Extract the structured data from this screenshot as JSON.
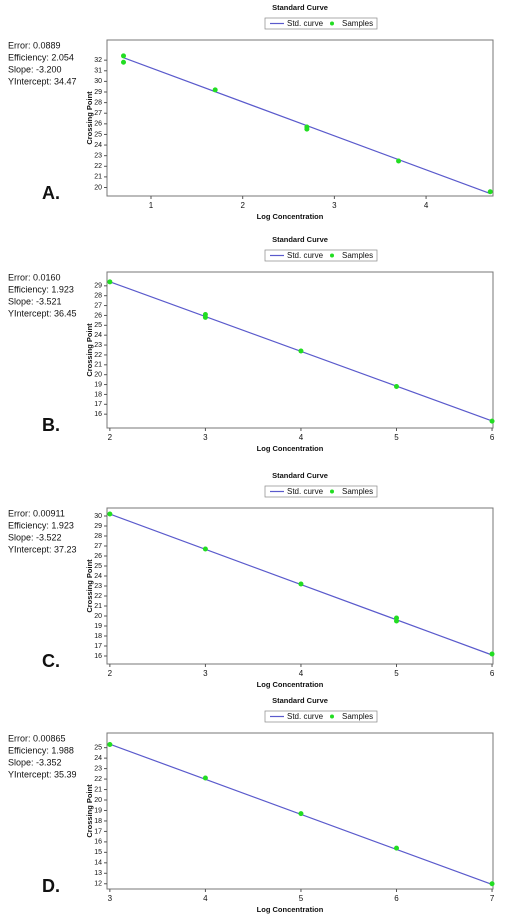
{
  "chart_data": [
    {
      "type": "line",
      "panel_label": "A.",
      "title": "Standard Curve",
      "x_label": "Log Concentration",
      "y_label": "Crossing Point",
      "stats": [
        "Error: 0.0889",
        "Efficiency: 2.054",
        "Slope: -3.200",
        "YIntercept: 34.47"
      ],
      "xlim": [
        0.52,
        4.73
      ],
      "xticks": [
        1,
        2,
        3,
        4
      ],
      "ylim": [
        19.2,
        33.9
      ],
      "yticks": [
        20,
        21,
        22,
        23,
        24,
        25,
        26,
        27,
        28,
        29,
        30,
        31,
        32
      ],
      "series": [
        {
          "name": "Std. curve",
          "mode": "line",
          "color": "#5a5acc",
          "x": [
            0.7,
            4.7
          ],
          "values": [
            32.23,
            19.43
          ]
        },
        {
          "name": "Samples",
          "mode": "markers",
          "color": "#22dd22",
          "x": [
            0.7,
            0.7,
            1.7,
            2.7,
            2.7,
            3.7,
            4.7
          ],
          "values": [
            32.4,
            31.8,
            29.2,
            25.7,
            25.5,
            22.5,
            19.6
          ]
        }
      ]
    },
    {
      "type": "line",
      "panel_label": "B.",
      "title": "Standard Curve",
      "x_label": "Log Concentration",
      "y_label": "Crossing Point",
      "stats": [
        "Error: 0.0160",
        "Efficiency: 1.923",
        "Slope: -3.521",
        "YIntercept: 36.45"
      ],
      "xlim": [
        1.97,
        6.01
      ],
      "xticks": [
        2,
        3,
        4,
        5,
        6
      ],
      "ylim": [
        14.6,
        30.4
      ],
      "yticks": [
        16,
        17,
        18,
        19,
        20,
        21,
        22,
        23,
        24,
        25,
        26,
        27,
        28,
        29
      ],
      "series": [
        {
          "name": "Std. curve",
          "mode": "line",
          "color": "#5a5acc",
          "x": [
            2,
            6
          ],
          "values": [
            29.41,
            15.32
          ]
        },
        {
          "name": "Samples",
          "mode": "markers",
          "color": "#22dd22",
          "x": [
            2,
            3,
            3,
            4,
            5,
            6
          ],
          "values": [
            29.4,
            26.1,
            25.8,
            22.4,
            18.8,
            15.3
          ]
        }
      ]
    },
    {
      "type": "line",
      "panel_label": "C.",
      "title": "Standard Curve",
      "x_label": "Log Concentration",
      "y_label": "Crossing Point",
      "stats": [
        "Error: 0.00911",
        "Efficiency: 1.923",
        "Slope: -3.522",
        "YIntercept: 37.23"
      ],
      "xlim": [
        1.97,
        6.01
      ],
      "xticks": [
        2,
        3,
        4,
        5,
        6
      ],
      "ylim": [
        15.2,
        30.8
      ],
      "yticks": [
        16,
        17,
        18,
        19,
        20,
        21,
        22,
        23,
        24,
        25,
        26,
        27,
        28,
        29,
        30
      ],
      "series": [
        {
          "name": "Std. curve",
          "mode": "line",
          "color": "#5a5acc",
          "x": [
            2,
            6
          ],
          "values": [
            30.19,
            16.1
          ]
        },
        {
          "name": "Samples",
          "mode": "markers",
          "color": "#22dd22",
          "x": [
            2,
            3,
            4,
            5,
            5,
            6
          ],
          "values": [
            30.2,
            26.7,
            23.2,
            19.8,
            19.5,
            16.2
          ]
        }
      ]
    },
    {
      "type": "line",
      "panel_label": "D.",
      "title": "Standard Curve",
      "x_label": "Log Concentration",
      "y_label": "Crossing Point",
      "stats": [
        "Error: 0.00865",
        "Efficiency: 1.988",
        "Slope: -3.352",
        "YIntercept: 35.39"
      ],
      "xlim": [
        2.97,
        7.01
      ],
      "xticks": [
        3,
        4,
        5,
        6,
        7
      ],
      "ylim": [
        11.5,
        26.4
      ],
      "yticks": [
        12,
        13,
        14,
        15,
        16,
        17,
        18,
        19,
        20,
        21,
        22,
        23,
        24,
        25
      ],
      "series": [
        {
          "name": "Std. curve",
          "mode": "line",
          "color": "#5a5acc",
          "x": [
            3,
            7
          ],
          "values": [
            25.33,
            11.93
          ]
        },
        {
          "name": "Samples",
          "mode": "markers",
          "color": "#22dd22",
          "x": [
            3,
            4,
            5,
            6,
            7
          ],
          "values": [
            25.3,
            22.1,
            18.7,
            15.4,
            12.0
          ]
        }
      ]
    }
  ]
}
